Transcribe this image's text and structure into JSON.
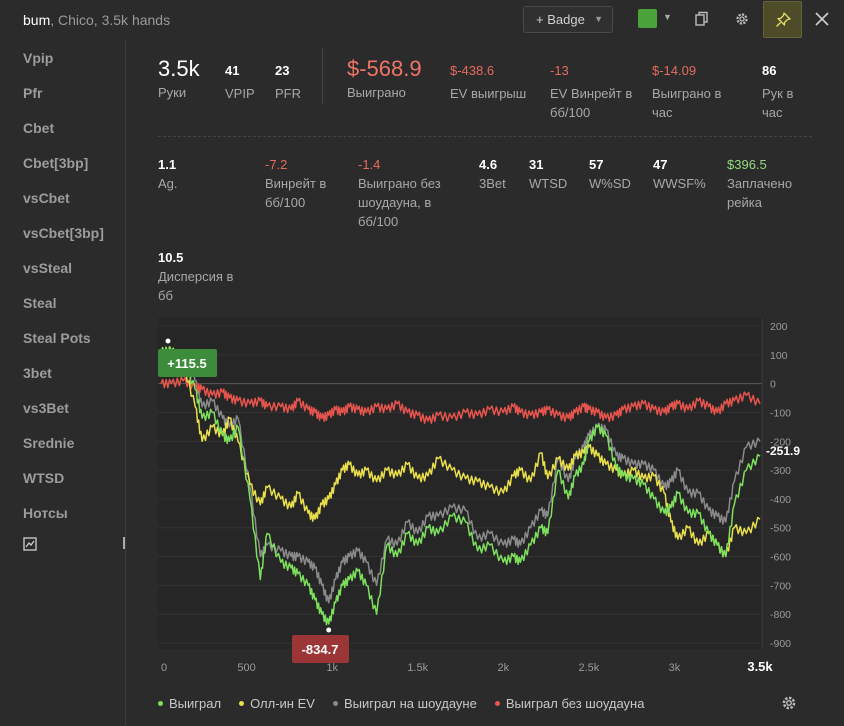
{
  "window": {
    "title": "bum",
    "subtitle": ", Chico, 3.5k hands",
    "badge_label": "+ Badge",
    "color_accent": "#4aa33a"
  },
  "sidebar": {
    "items": [
      "Vpip",
      "Pfr",
      "Cbet",
      "Cbet[3bp]",
      "vsCbet",
      "vsCbet[3bp]",
      "vsSteal",
      "Steal",
      "Steal Pots",
      "3bet",
      "vs3Bet",
      "Srednie",
      "WTSD",
      "Нотсы"
    ]
  },
  "stats_top": [
    {
      "value": "3.5k",
      "label": "Руки"
    },
    {
      "value": "41",
      "label": "VPIP"
    },
    {
      "value": "23",
      "label": "PFR"
    },
    {
      "value": "$-568.9",
      "label": "Выиграно"
    },
    {
      "value": "$-438.6",
      "label": "EV выигрыш"
    },
    {
      "value": "-13",
      "label": "EV Винрейт в бб/100"
    },
    {
      "value": "$-14.09",
      "label": "Выиграно в час"
    },
    {
      "value": "86",
      "label": "Рук в час"
    }
  ],
  "stats_mid": [
    {
      "value": "1.1",
      "label": "Ag."
    },
    {
      "value": "-7.2",
      "label": "Винрейт в бб/100"
    },
    {
      "value": "-1.4",
      "label": "Выиграно без шоудауна, в бб/100"
    },
    {
      "value": "4.6",
      "label": "3Bet"
    },
    {
      "value": "31",
      "label": "WTSD"
    },
    {
      "value": "57",
      "label": "W%SD"
    },
    {
      "value": "47",
      "label": "WWSF%"
    },
    {
      "value": "$396.5",
      "label": "Заплачено рейка"
    },
    {
      "value": "10.5",
      "label": "Дисперсия в бб"
    }
  ],
  "chart_data": {
    "type": "line",
    "x_ticks": [
      "0",
      "500",
      "1k",
      "1.5k",
      "2k",
      "2.5k",
      "3k",
      "3.5k"
    ],
    "y_ticks": [
      "200",
      "100",
      "0",
      "-100",
      "-200",
      "-300",
      "-400",
      "-500",
      "-600",
      "-700",
      "-800",
      "-900"
    ],
    "xlim": [
      0,
      3500
    ],
    "ylim": [
      -900,
      200
    ],
    "max_label": "+115.5",
    "min_label": "-834.7",
    "end_label": "-251.9",
    "colors": {
      "won": "#7de05d",
      "allin_ev": "#e8df4a",
      "won_sd": "#8a8a8a",
      "won_nsd": "#e5544d",
      "max_badge": "#3c8c3c",
      "min_badge": "#9c3636"
    },
    "series": [
      {
        "name": "Выиграл",
        "key": "won",
        "x": [
          0,
          60,
          130,
          200,
          240,
          300,
          360,
          400,
          450,
          520,
          580,
          620,
          700,
          760,
          800,
          860,
          900,
          940,
          980,
          1020,
          1060,
          1100,
          1150,
          1200,
          1260,
          1320,
          1380,
          1440,
          1500,
          1560,
          1620,
          1700,
          1780,
          1850,
          1920,
          2000,
          2060,
          2100,
          2160,
          2220,
          2260,
          2320,
          2380,
          2420,
          2470,
          2500,
          2550,
          2600,
          2660,
          2700,
          2760,
          2820,
          2880,
          2940,
          2980,
          3020,
          3080,
          3140,
          3200,
          3250,
          3300,
          3350,
          3420,
          3500
        ],
        "y": [
          110,
          115,
          80,
          -20,
          -120,
          -100,
          -180,
          -200,
          -150,
          -400,
          -680,
          -520,
          -620,
          -640,
          -660,
          -700,
          -750,
          -800,
          -834,
          -760,
          -700,
          -680,
          -650,
          -700,
          -800,
          -560,
          -600,
          -520,
          -560,
          -500,
          -520,
          -460,
          -480,
          -580,
          -560,
          -620,
          -600,
          -620,
          -560,
          -500,
          -520,
          -300,
          -400,
          -320,
          -280,
          -200,
          -150,
          -180,
          -290,
          -320,
          -330,
          -350,
          -400,
          -450,
          -430,
          -380,
          -450,
          -450,
          -520,
          -560,
          -600,
          -420,
          -300,
          -252
        ]
      },
      {
        "name": "Олл-ин EV",
        "key": "allin_ev",
        "x": [
          0,
          60,
          130,
          200,
          240,
          300,
          360,
          400,
          450,
          520,
          580,
          620,
          700,
          760,
          800,
          860,
          900,
          940,
          980,
          1020,
          1060,
          1100,
          1150,
          1200,
          1260,
          1320,
          1380,
          1440,
          1500,
          1560,
          1620,
          1700,
          1780,
          1850,
          1920,
          2000,
          2060,
          2100,
          2160,
          2220,
          2260,
          2320,
          2380,
          2420,
          2470,
          2500,
          2550,
          2600,
          2660,
          2700,
          2760,
          2820,
          2880,
          2940,
          2980,
          3020,
          3080,
          3140,
          3200,
          3250,
          3300,
          3350,
          3420,
          3500
        ],
        "y": [
          110,
          115,
          70,
          -80,
          -200,
          -150,
          -180,
          -120,
          -200,
          -350,
          -420,
          -360,
          -400,
          -430,
          -380,
          -450,
          -470,
          -420,
          -400,
          -350,
          -300,
          -280,
          -320,
          -300,
          -340,
          -300,
          -320,
          -280,
          -330,
          -320,
          -260,
          -300,
          -330,
          -340,
          -360,
          -380,
          -320,
          -300,
          -340,
          -240,
          -330,
          -260,
          -300,
          -250,
          -240,
          -220,
          -250,
          -280,
          -300,
          -320,
          -300,
          -330,
          -320,
          -380,
          -480,
          -540,
          -500,
          -560,
          -520,
          -560,
          -600,
          -500,
          -520,
          -470
        ]
      },
      {
        "name": "Выиграл на шоудауне",
        "key": "won_sd",
        "x": [
          0,
          60,
          130,
          200,
          240,
          300,
          360,
          400,
          450,
          520,
          580,
          620,
          700,
          760,
          800,
          860,
          900,
          940,
          980,
          1020,
          1060,
          1100,
          1150,
          1200,
          1260,
          1320,
          1380,
          1440,
          1500,
          1560,
          1620,
          1700,
          1780,
          1850,
          1920,
          2000,
          2060,
          2100,
          2160,
          2220,
          2260,
          2320,
          2380,
          2420,
          2470,
          2500,
          2550,
          2600,
          2660,
          2700,
          2760,
          2820,
          2880,
          2940,
          2980,
          3020,
          3080,
          3140,
          3200,
          3250,
          3300,
          3350,
          3420,
          3500
        ],
        "y": [
          110,
          110,
          90,
          10,
          -80,
          -60,
          -120,
          -150,
          -120,
          -360,
          -600,
          -560,
          -580,
          -600,
          -600,
          -620,
          -640,
          -700,
          -760,
          -680,
          -620,
          -600,
          -580,
          -620,
          -700,
          -540,
          -560,
          -480,
          -520,
          -460,
          -460,
          -430,
          -440,
          -540,
          -520,
          -560,
          -540,
          -560,
          -500,
          -440,
          -460,
          -260,
          -340,
          -260,
          -220,
          -180,
          -150,
          -160,
          -250,
          -260,
          -280,
          -280,
          -300,
          -360,
          -340,
          -300,
          -380,
          -380,
          -440,
          -460,
          -480,
          -340,
          -220,
          -200
        ]
      },
      {
        "name": "Выиграл без шоудауна",
        "key": "won_nsd",
        "x": [
          0,
          60,
          130,
          200,
          240,
          300,
          360,
          400,
          450,
          520,
          580,
          620,
          700,
          760,
          800,
          860,
          900,
          940,
          980,
          1020,
          1060,
          1100,
          1150,
          1200,
          1260,
          1320,
          1380,
          1440,
          1500,
          1560,
          1620,
          1700,
          1780,
          1850,
          1920,
          2000,
          2060,
          2100,
          2160,
          2220,
          2260,
          2320,
          2380,
          2420,
          2470,
          2500,
          2550,
          2600,
          2660,
          2700,
          2760,
          2820,
          2880,
          2940,
          2980,
          3020,
          3080,
          3140,
          3200,
          3250,
          3300,
          3350,
          3420,
          3500
        ],
        "y": [
          0,
          0,
          10,
          -10,
          -20,
          -40,
          -30,
          -50,
          -60,
          -70,
          -60,
          -80,
          -80,
          -90,
          -60,
          -90,
          -100,
          -120,
          -110,
          -90,
          -100,
          -80,
          -90,
          -100,
          -80,
          -90,
          -70,
          -100,
          -110,
          -130,
          -110,
          -120,
          -100,
          -110,
          -90,
          -100,
          -80,
          -100,
          -110,
          -100,
          -90,
          -110,
          -120,
          -100,
          -80,
          -90,
          -100,
          -120,
          -110,
          -90,
          -80,
          -70,
          -90,
          -100,
          -80,
          -70,
          -90,
          -60,
          -80,
          -100,
          -70,
          -60,
          -40,
          -70
        ]
      }
    ]
  },
  "legend": [
    "Выиграл",
    "Олл-ин EV",
    "Выиграл на шоудауне",
    "Выиграл без шоудауна"
  ]
}
